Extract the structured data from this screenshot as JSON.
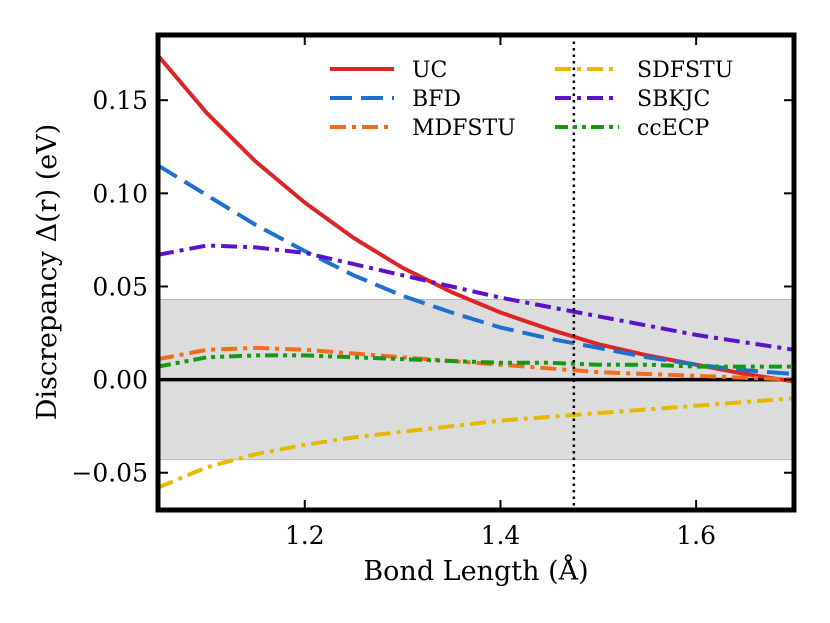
{
  "chart_data": {
    "type": "line",
    "xlabel": "Bond Length (Å)",
    "ylabel": "Discrepancy Δ(r) (eV)",
    "xlim": [
      1.05,
      1.7
    ],
    "ylim": [
      -0.07,
      0.185
    ],
    "xticks": [
      1.2,
      1.4,
      1.6
    ],
    "xtick_labels": [
      "1.2",
      "1.4",
      "1.6"
    ],
    "yticks": [
      -0.05,
      0.0,
      0.05,
      0.1,
      0.15
    ],
    "ytick_labels": [
      "−0.05",
      "0.00",
      "0.05",
      "0.10",
      "0.15"
    ],
    "band": [
      -0.043,
      0.043
    ],
    "band_color": "#dcdcdc",
    "zero_line": 0.0,
    "vline_x": 1.475,
    "grid": false,
    "legend_placement": "top-right",
    "series": [
      {
        "name": "UC",
        "color": "#dc2626",
        "dash": "solid",
        "x": [
          1.05,
          1.1,
          1.15,
          1.2,
          1.25,
          1.3,
          1.35,
          1.4,
          1.45,
          1.5,
          1.55,
          1.6,
          1.65,
          1.7
        ],
        "y": [
          0.174,
          0.143,
          0.117,
          0.095,
          0.076,
          0.06,
          0.047,
          0.036,
          0.027,
          0.019,
          0.013,
          0.008,
          0.003,
          -0.001
        ]
      },
      {
        "name": "BFD",
        "color": "#1f6fd0",
        "dash": "long",
        "x": [
          1.05,
          1.1,
          1.15,
          1.2,
          1.25,
          1.3,
          1.35,
          1.4,
          1.45,
          1.5,
          1.55,
          1.6,
          1.65,
          1.7
        ],
        "y": [
          0.115,
          0.099,
          0.083,
          0.069,
          0.056,
          0.045,
          0.036,
          0.028,
          0.022,
          0.017,
          0.012,
          0.008,
          0.005,
          0.003
        ]
      },
      {
        "name": "MDFSTU",
        "color": "#f26b1d",
        "dash": "dashdot",
        "x": [
          1.05,
          1.1,
          1.15,
          1.2,
          1.25,
          1.3,
          1.35,
          1.4,
          1.45,
          1.5,
          1.55,
          1.6,
          1.65,
          1.7
        ],
        "y": [
          0.011,
          0.016,
          0.017,
          0.016,
          0.014,
          0.012,
          0.01,
          0.008,
          0.006,
          0.004,
          0.003,
          0.002,
          0.001,
          0.0
        ]
      },
      {
        "name": "SDFSTU",
        "color": "#e6b800",
        "dash": "dashdot",
        "x": [
          1.05,
          1.1,
          1.15,
          1.2,
          1.25,
          1.3,
          1.35,
          1.4,
          1.45,
          1.5,
          1.55,
          1.6,
          1.65,
          1.7
        ],
        "y": [
          -0.058,
          -0.047,
          -0.04,
          -0.035,
          -0.031,
          -0.028,
          -0.025,
          -0.022,
          -0.02,
          -0.018,
          -0.016,
          -0.014,
          -0.012,
          -0.01
        ]
      },
      {
        "name": "SBKJC",
        "color": "#5b12c8",
        "dash": "dashdot",
        "x": [
          1.05,
          1.1,
          1.15,
          1.2,
          1.25,
          1.3,
          1.35,
          1.4,
          1.45,
          1.5,
          1.55,
          1.6,
          1.65,
          1.7
        ],
        "y": [
          0.067,
          0.072,
          0.071,
          0.068,
          0.062,
          0.056,
          0.05,
          0.044,
          0.039,
          0.034,
          0.029,
          0.024,
          0.02,
          0.016
        ]
      },
      {
        "name": "ccECP",
        "color": "#139a13",
        "dash": "dashdotdot",
        "x": [
          1.05,
          1.1,
          1.15,
          1.2,
          1.25,
          1.3,
          1.35,
          1.4,
          1.45,
          1.5,
          1.55,
          1.6,
          1.65,
          1.7
        ],
        "y": [
          0.007,
          0.012,
          0.013,
          0.013,
          0.012,
          0.011,
          0.01,
          0.009,
          0.009,
          0.008,
          0.008,
          0.007,
          0.007,
          0.007
        ]
      }
    ]
  }
}
